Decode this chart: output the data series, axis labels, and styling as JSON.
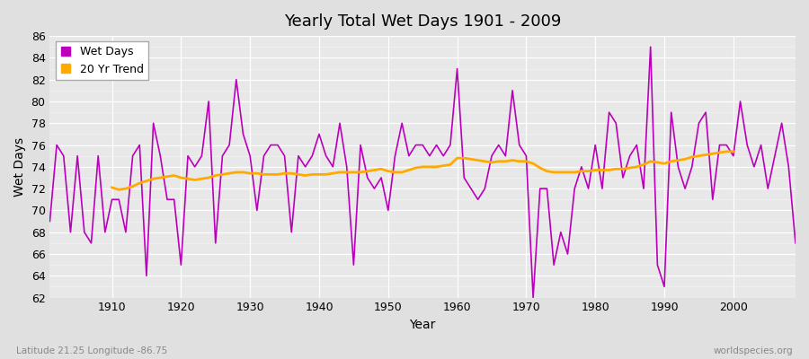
{
  "title": "Yearly Total Wet Days 1901 - 2009",
  "xlabel": "Year",
  "ylabel": "Wet Days",
  "footnote_left": "Latitude 21.25 Longitude -86.75",
  "footnote_right": "worldspecies.org",
  "ylim": [
    62,
    86
  ],
  "wet_days_color": "#bb00bb",
  "trend_color": "#ffaa00",
  "bg_color": "#e0e0e0",
  "plot_bg_color": "#e8e8e8",
  "legend_wet": "Wet Days",
  "legend_trend": "20 Yr Trend",
  "years": [
    1901,
    1902,
    1903,
    1904,
    1905,
    1906,
    1907,
    1908,
    1909,
    1910,
    1911,
    1912,
    1913,
    1914,
    1915,
    1916,
    1917,
    1918,
    1919,
    1920,
    1921,
    1922,
    1923,
    1924,
    1925,
    1926,
    1927,
    1928,
    1929,
    1930,
    1931,
    1932,
    1933,
    1934,
    1935,
    1936,
    1937,
    1938,
    1939,
    1940,
    1941,
    1942,
    1943,
    1944,
    1945,
    1946,
    1947,
    1948,
    1949,
    1950,
    1951,
    1952,
    1953,
    1954,
    1955,
    1956,
    1957,
    1958,
    1959,
    1960,
    1961,
    1962,
    1963,
    1964,
    1965,
    1966,
    1967,
    1968,
    1969,
    1970,
    1971,
    1972,
    1973,
    1974,
    1975,
    1976,
    1977,
    1978,
    1979,
    1980,
    1981,
    1982,
    1983,
    1984,
    1985,
    1986,
    1987,
    1988,
    1989,
    1990,
    1991,
    1992,
    1993,
    1994,
    1995,
    1996,
    1997,
    1998,
    1999,
    2000,
    2001,
    2002,
    2003,
    2004,
    2005,
    2006,
    2007,
    2008,
    2009
  ],
  "wet_days": [
    69,
    76,
    75,
    68,
    75,
    68,
    67,
    75,
    68,
    71,
    71,
    68,
    75,
    76,
    64,
    78,
    75,
    71,
    71,
    65,
    75,
    74,
    75,
    80,
    67,
    75,
    76,
    82,
    77,
    75,
    70,
    75,
    76,
    76,
    75,
    68,
    75,
    74,
    75,
    77,
    75,
    74,
    78,
    74,
    65,
    76,
    73,
    72,
    73,
    70,
    75,
    78,
    75,
    76,
    76,
    75,
    76,
    75,
    76,
    83,
    73,
    72,
    71,
    72,
    75,
    76,
    75,
    81,
    76,
    75,
    62,
    72,
    72,
    65,
    68,
    66,
    72,
    74,
    72,
    76,
    72,
    79,
    78,
    73,
    75,
    76,
    72,
    85,
    65,
    63,
    79,
    74,
    72,
    74,
    78,
    79,
    71,
    76,
    76,
    75,
    80,
    76,
    74,
    76,
    72,
    75,
    78,
    74,
    67
  ],
  "trend": [
    null,
    null,
    null,
    null,
    null,
    null,
    null,
    null,
    null,
    72.1,
    71.9,
    72.0,
    72.2,
    72.5,
    72.7,
    72.9,
    73.0,
    73.1,
    73.2,
    73.0,
    72.9,
    72.8,
    72.9,
    73.0,
    73.2,
    73.3,
    73.4,
    73.5,
    73.5,
    73.4,
    73.4,
    73.3,
    73.3,
    73.3,
    73.4,
    73.4,
    73.3,
    73.2,
    73.3,
    73.3,
    73.3,
    73.4,
    73.5,
    73.5,
    73.5,
    73.5,
    73.6,
    73.7,
    73.8,
    73.6,
    73.5,
    73.5,
    73.7,
    73.9,
    74.0,
    74.0,
    74.0,
    74.1,
    74.2,
    74.8,
    74.8,
    74.7,
    74.6,
    74.5,
    74.4,
    74.5,
    74.5,
    74.6,
    74.5,
    74.5,
    74.3,
    73.9,
    73.6,
    73.5,
    73.5,
    73.5,
    73.5,
    73.6,
    73.6,
    73.7,
    73.7,
    73.7,
    73.8,
    73.8,
    73.9,
    74.0,
    74.2,
    74.5,
    74.4,
    74.3,
    74.5,
    74.6,
    74.7,
    74.9,
    75.0,
    75.1,
    75.2,
    75.3,
    75.4,
    75.4,
    null,
    null,
    null,
    null,
    null,
    null,
    null,
    null,
    null
  ]
}
